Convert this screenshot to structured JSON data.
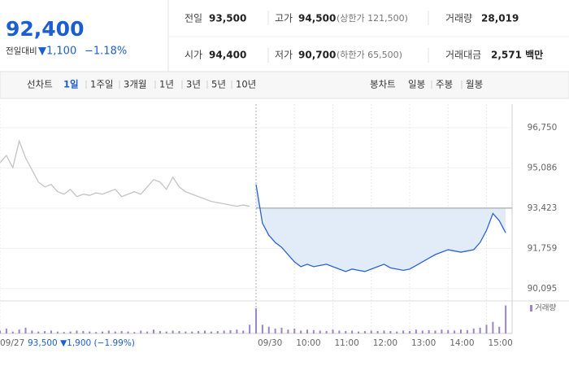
{
  "header": {
    "price": "92,400",
    "change_label": "전일대비",
    "change": "▼1,100",
    "change_pct": "−1.18%",
    "stats": [
      {
        "label": "전일",
        "value": "93,500"
      },
      {
        "label": "고가",
        "value": "94,500",
        "note": "(상한가 121,500)"
      },
      {
        "label": "거래량",
        "value": "28,019"
      },
      {
        "label": "시가",
        "value": "94,400"
      },
      {
        "label": "저가",
        "value": "90,700",
        "note": "(하한가 65,500)"
      },
      {
        "label": "거래대금",
        "value": "2,571 백만"
      }
    ]
  },
  "tabs": {
    "line_label": "선차트",
    "line_periods": [
      "1일",
      "1주일",
      "3개월",
      "1년",
      "3년",
      "5년",
      "10년"
    ],
    "candle_label": "봉차트",
    "candle_periods": [
      "일봉",
      "주봉",
      "월봉"
    ]
  },
  "chart_data": [
    {
      "type": "line",
      "categories": [
        "09/27",
        null,
        null,
        null,
        null,
        null,
        null,
        null,
        null,
        null,
        null,
        null,
        null,
        null,
        null,
        null,
        null,
        null,
        null,
        null,
        null,
        null,
        null,
        null,
        null,
        null,
        null,
        null,
        null,
        null,
        null,
        null,
        null,
        null,
        null,
        null,
        null,
        null,
        null,
        null,
        "09/30",
        null,
        null,
        null,
        null,
        null,
        "10:00",
        null,
        null,
        null,
        null,
        null,
        "11:00",
        null,
        null,
        null,
        null,
        null,
        "12:00",
        null,
        null,
        null,
        null,
        null,
        "13:00",
        null,
        null,
        null,
        null,
        null,
        "14:00",
        null,
        null,
        null,
        null,
        null,
        "15:00",
        null,
        null,
        null
      ],
      "series": [
        {
          "color": "#c4c4c4",
          "values": [
            95300,
            95600,
            95100,
            96200,
            95500,
            95000,
            94500,
            94300,
            94400,
            94100,
            94000,
            94200,
            93900,
            94000,
            93950,
            94050,
            94000,
            94100,
            94200,
            93900,
            94000,
            94100,
            94000,
            94300,
            94600,
            94500,
            94200,
            94700,
            94300,
            94100,
            94000,
            93900,
            93800,
            93700,
            93650,
            93600,
            93550,
            93500,
            93550,
            93500,
            null,
            null,
            null,
            null,
            null,
            null,
            null,
            null,
            null,
            null,
            null,
            null,
            null,
            null,
            null,
            null,
            null,
            null,
            null,
            null,
            null,
            null,
            null,
            null,
            null,
            null,
            null,
            null,
            null,
            null,
            null,
            null,
            null,
            null,
            null,
            null,
            null,
            null,
            null,
            null
          ]
        },
        {
          "color": "#2a63d4",
          "fill": "#e2ebf8",
          "values": [
            null,
            null,
            null,
            null,
            null,
            null,
            null,
            null,
            null,
            null,
            null,
            null,
            null,
            null,
            null,
            null,
            null,
            null,
            null,
            null,
            null,
            null,
            null,
            null,
            null,
            null,
            null,
            null,
            null,
            null,
            null,
            null,
            null,
            null,
            null,
            null,
            null,
            null,
            null,
            null,
            94400,
            92800,
            92300,
            92000,
            91800,
            91500,
            91200,
            91000,
            91100,
            91000,
            91050,
            91100,
            91000,
            90900,
            90800,
            90900,
            90850,
            90800,
            90900,
            91000,
            91100,
            90950,
            90900,
            90850,
            90900,
            91050,
            91200,
            91350,
            91500,
            91600,
            91700,
            91650,
            91600,
            91650,
            91700,
            92000,
            92500,
            93200,
            92900,
            92400
          ]
        }
      ],
      "ylim": [
        89650,
        97725
      ],
      "yticks": [
        {
          "value": 96750,
          "label": "96,750"
        },
        {
          "value": 95086,
          "label": "95,086"
        },
        {
          "value": 93423,
          "label": "93,423"
        },
        {
          "value": 91759,
          "label": "91,759"
        },
        {
          "value": 90095,
          "label": "90,095"
        }
      ],
      "grid": true,
      "annotations": [
        "93,500 ▼1,900 (−1.99%)"
      ]
    },
    {
      "type": "bar",
      "series": [
        {
          "name": "거래량",
          "color": "#9b84c9",
          "values": [
            300,
            500,
            200,
            400,
            600,
            300,
            200,
            250,
            300,
            200,
            150,
            200,
            300,
            250,
            200,
            150,
            200,
            300,
            200,
            250,
            200,
            150,
            300,
            200,
            400,
            250,
            200,
            300,
            250,
            200,
            200,
            250,
            300,
            200,
            250,
            300,
            350,
            400,
            300,
            900,
            2600,
            900,
            700,
            500,
            600,
            400,
            500,
            300,
            400,
            350,
            300,
            250,
            400,
            300,
            250,
            300,
            200,
            250,
            300,
            250,
            300,
            250,
            200,
            300,
            250,
            400,
            300,
            350,
            300,
            400,
            350,
            300,
            400,
            350,
            500,
            600,
            900,
            1200,
            700,
            2900
          ]
        }
      ],
      "ylim": [
        0,
        3200
      ]
    }
  ]
}
